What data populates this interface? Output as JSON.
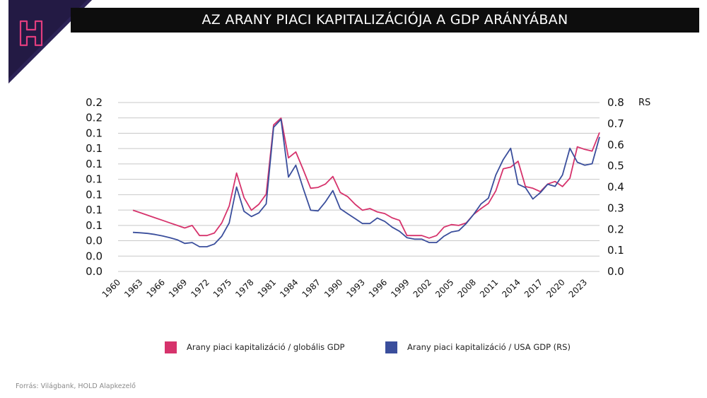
{
  "header": {
    "title": "AZ ARANY PIACI KAPITALIZÁCIÓJA A GDP ARÁNYÁBAN"
  },
  "logo": {
    "icon": "h-logo-icon",
    "color": "#e23d7e",
    "bg": "#231a44"
  },
  "footer": {
    "source": "Forrás: Világbank, HOLD Alapkezelő"
  },
  "chart_data": {
    "type": "line",
    "title": "AZ ARANY PIACI KAPITALIZÁCIÓJA A GDP ARÁNYÁBAN",
    "xlabel": "",
    "ylabel": "",
    "y_right_unit": "RS",
    "x_ticks": [
      "1960",
      "1963",
      "1966",
      "1969",
      "1972",
      "1975",
      "1978",
      "1981",
      "1984",
      "1987",
      "1990",
      "1993",
      "1996",
      "1999",
      "2002",
      "2005",
      "2008",
      "2011",
      "2014",
      "2017",
      "2020",
      "2023"
    ],
    "y_left_ticks": [
      "0.0",
      "0.0",
      "0.0",
      "0.1",
      "0.1",
      "0.1",
      "0.1",
      "0.1",
      "0.1",
      "0.1",
      "0.2",
      "0.2"
    ],
    "y_right_ticks": [
      "0.0",
      "0.1",
      "0.2",
      "0.3",
      "0.4",
      "0.5",
      "0.6",
      "0.7",
      "0.8"
    ],
    "y_left_lim": [
      0,
      0.2
    ],
    "y_right_lim": [
      0,
      0.8
    ],
    "grid": true,
    "legend_position": "bottom",
    "x": [
      1962,
      1963,
      1964,
      1965,
      1966,
      1967,
      1968,
      1969,
      1970,
      1971,
      1972,
      1973,
      1974,
      1975,
      1976,
      1977,
      1978,
      1979,
      1980,
      1981,
      1982,
      1983,
      1984,
      1985,
      1986,
      1987,
      1988,
      1989,
      1990,
      1991,
      1992,
      1993,
      1994,
      1995,
      1996,
      1997,
      1998,
      1999,
      2000,
      2001,
      2002,
      2003,
      2004,
      2005,
      2006,
      2007,
      2008,
      2009,
      2010,
      2011,
      2012,
      2013,
      2014,
      2015,
      2016,
      2017,
      2018,
      2019,
      2020,
      2021,
      2022,
      2023,
      2024,
      2025
    ],
    "series": [
      {
        "name": "Arany piaci kapitalizáció / globális GDP",
        "color": "#d6336c",
        "axis": "left",
        "values": [
          0.0725,
          0.0695,
          0.0665,
          0.0635,
          0.0605,
          0.0575,
          0.0545,
          0.0515,
          0.0545,
          0.0425,
          0.0425,
          0.0455,
          0.0575,
          0.0775,
          0.1165,
          0.0875,
          0.0725,
          0.0795,
          0.0915,
          0.1735,
          0.1815,
          0.1345,
          0.1415,
          0.1205,
          0.0985,
          0.0995,
          0.1035,
          0.1125,
          0.0935,
          0.0885,
          0.0795,
          0.0725,
          0.0745,
          0.0705,
          0.0685,
          0.0635,
          0.0605,
          0.0425,
          0.0425,
          0.0425,
          0.0395,
          0.0425,
          0.0525,
          0.0555,
          0.0545,
          0.0575,
          0.0675,
          0.0745,
          0.0805,
          0.0955,
          0.1215,
          0.1235,
          0.1305,
          0.1005,
          0.0985,
          0.0945,
          0.1035,
          0.1065,
          0.1005,
          0.1105,
          0.1475,
          0.1445,
          0.1425,
          0.1645
        ]
      },
      {
        "name": "Arany piaci kapitalizáció / USA GDP (RS)",
        "color": "#3a4e9c",
        "axis": "right",
        "values": [
          0.185,
          0.183,
          0.18,
          0.175,
          0.168,
          0.16,
          0.15,
          0.133,
          0.137,
          0.117,
          0.117,
          0.13,
          0.167,
          0.23,
          0.4,
          0.285,
          0.26,
          0.277,
          0.32,
          0.683,
          0.72,
          0.447,
          0.503,
          0.393,
          0.29,
          0.287,
          0.33,
          0.383,
          0.297,
          0.273,
          0.25,
          0.227,
          0.227,
          0.253,
          0.237,
          0.21,
          0.19,
          0.16,
          0.153,
          0.153,
          0.137,
          0.137,
          0.167,
          0.187,
          0.193,
          0.227,
          0.27,
          0.32,
          0.347,
          0.457,
          0.53,
          0.583,
          0.413,
          0.397,
          0.343,
          0.373,
          0.413,
          0.403,
          0.457,
          0.583,
          0.517,
          0.503,
          0.51,
          0.637
        ]
      }
    ]
  }
}
